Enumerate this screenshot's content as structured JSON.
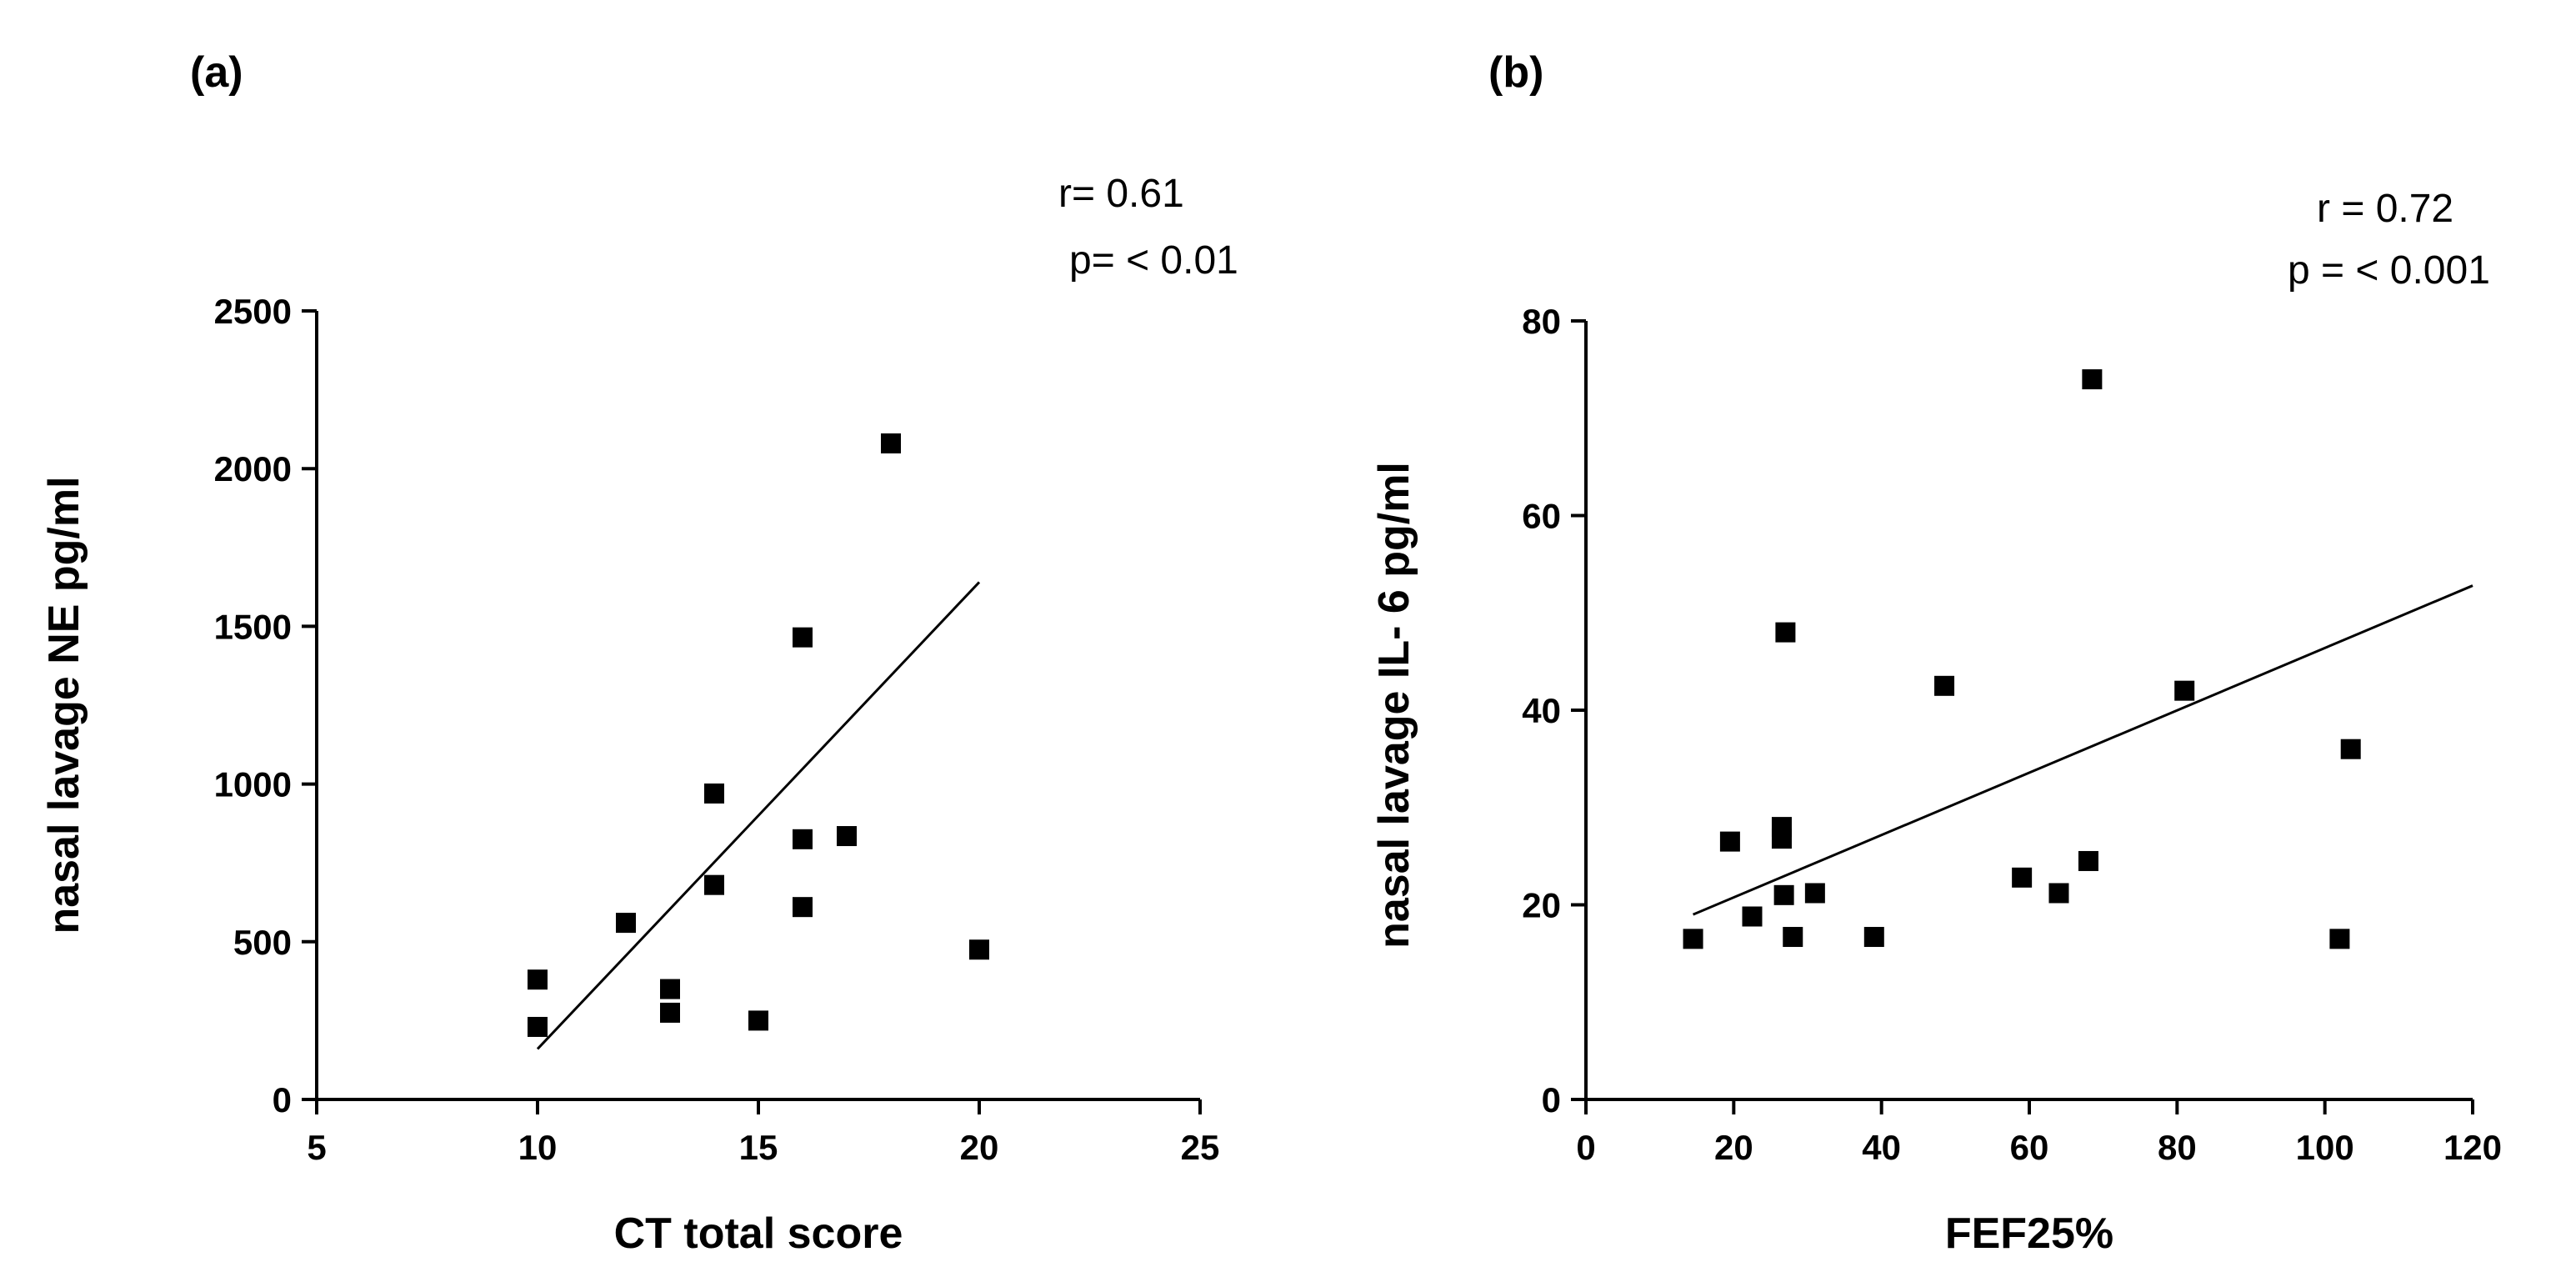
{
  "chart_data": [
    {
      "type": "scatter",
      "panel_label": "(a)",
      "title": "",
      "xlabel": "CT total score",
      "ylabel": "nasal lavage NE pg/ml",
      "xlim": [
        5,
        25
      ],
      "ylim": [
        0,
        2500
      ],
      "xticks": [
        5,
        10,
        15,
        20,
        25
      ],
      "yticks": [
        0,
        500,
        1000,
        1500,
        2000,
        2500
      ],
      "stats": {
        "r": "r= 0.61",
        "p": "p= < 0.01"
      },
      "points": [
        {
          "x": 10,
          "y": 380
        },
        {
          "x": 10,
          "y": 230
        },
        {
          "x": 12,
          "y": 560
        },
        {
          "x": 13,
          "y": 350
        },
        {
          "x": 13,
          "y": 275
        },
        {
          "x": 14,
          "y": 970
        },
        {
          "x": 14,
          "y": 680
        },
        {
          "x": 15,
          "y": 250
        },
        {
          "x": 16,
          "y": 1465
        },
        {
          "x": 16,
          "y": 825
        },
        {
          "x": 16,
          "y": 610
        },
        {
          "x": 17,
          "y": 835
        },
        {
          "x": 18,
          "y": 2080
        },
        {
          "x": 20,
          "y": 475
        }
      ],
      "fit_line": {
        "x1": 10,
        "y1": 160,
        "x2": 20,
        "y2": 1640
      }
    },
    {
      "type": "scatter",
      "panel_label": "(b)",
      "title": "",
      "xlabel": "FEF25%",
      "ylabel": "nasal lavage IL- 6 pg/ml",
      "xlim": [
        0,
        120
      ],
      "ylim": [
        0,
        80
      ],
      "xticks": [
        0,
        20,
        40,
        60,
        80,
        100,
        120
      ],
      "yticks": [
        0,
        20,
        40,
        60,
        80
      ],
      "stats": {
        "r": "r = 0.72",
        "p": "p = < 0.001"
      },
      "points": [
        {
          "x": 14.5,
          "y": 16.5
        },
        {
          "x": 19.5,
          "y": 26.5
        },
        {
          "x": 22.5,
          "y": 18.8
        },
        {
          "x": 26.5,
          "y": 28.0
        },
        {
          "x": 26.5,
          "y": 26.8
        },
        {
          "x": 26.8,
          "y": 21.0
        },
        {
          "x": 27.0,
          "y": 48.0
        },
        {
          "x": 28.0,
          "y": 16.7
        },
        {
          "x": 31.0,
          "y": 21.2
        },
        {
          "x": 39.0,
          "y": 16.7
        },
        {
          "x": 48.5,
          "y": 42.5
        },
        {
          "x": 59.0,
          "y": 22.8
        },
        {
          "x": 64.0,
          "y": 21.2
        },
        {
          "x": 68.0,
          "y": 24.5
        },
        {
          "x": 68.5,
          "y": 74.0
        },
        {
          "x": 81.0,
          "y": 42.0
        },
        {
          "x": 102.0,
          "y": 16.5
        },
        {
          "x": 103.5,
          "y": 36.0
        }
      ],
      "fit_line": {
        "x1": 14.5,
        "y1": 19.0,
        "x2": 120,
        "y2": 52.8
      }
    }
  ]
}
